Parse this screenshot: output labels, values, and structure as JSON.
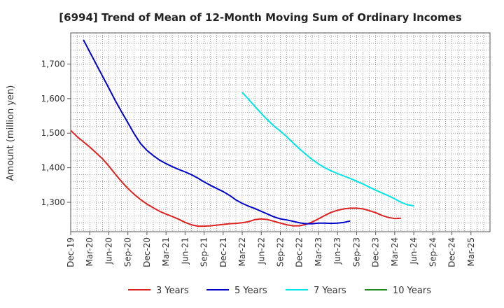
{
  "chart_data": {
    "type": "line",
    "title": "[6994]  Trend of Mean of 12-Month Moving Sum of Ordinary Incomes",
    "xlabel": "",
    "ylabel": "Amount (million yen)",
    "ylim": [
      1215,
      1790
    ],
    "yticks": [
      1300,
      1400,
      1500,
      1600,
      1700
    ],
    "ytick_labels": [
      "1,300",
      "1,400",
      "1,500",
      "1,600",
      "1,700"
    ],
    "x_range": [
      0,
      66
    ],
    "x_tick_labels": [
      "Dec-19",
      "Mar-20",
      "Jun-20",
      "Sep-20",
      "Dec-20",
      "Mar-21",
      "Jun-21",
      "Sep-21",
      "Dec-21",
      "Mar-22",
      "Jun-22",
      "Sep-22",
      "Dec-22",
      "Mar-23",
      "Jun-23",
      "Sep-23",
      "Dec-23",
      "Mar-24",
      "Jun-24",
      "Sep-24",
      "Dec-24",
      "Mar-25"
    ],
    "grid": true,
    "legend_position": "bottom",
    "series": [
      {
        "name": "3 Years",
        "color": "#dd2222",
        "x_start": 0,
        "values": [
          1508,
          1490,
          1475,
          1460,
          1443,
          1426,
          1405,
          1382,
          1360,
          1340,
          1323,
          1308,
          1295,
          1284,
          1274,
          1266,
          1259,
          1251,
          1242,
          1235,
          1231,
          1231,
          1232,
          1234,
          1236,
          1238,
          1239,
          1241,
          1244,
          1250,
          1252,
          1250,
          1245,
          1240,
          1235,
          1232,
          1232,
          1236,
          1243,
          1252,
          1262,
          1271,
          1277,
          1281,
          1283,
          1283,
          1281,
          1276,
          1270,
          1262,
          1256,
          1253,
          1254
        ]
      },
      {
        "name": "5 Years",
        "color": "#0000cc",
        "x_start": 2,
        "values": [
          1770,
          1735,
          1700,
          1665,
          1630,
          1595,
          1562,
          1530,
          1498,
          1470,
          1450,
          1435,
          1422,
          1412,
          1403,
          1395,
          1388,
          1380,
          1370,
          1359,
          1349,
          1340,
          1331,
          1320,
          1307,
          1297,
          1289,
          1282,
          1274,
          1266,
          1258,
          1252,
          1249,
          1245,
          1241,
          1238,
          1238,
          1240,
          1240,
          1239,
          1240,
          1242,
          1246
        ]
      },
      {
        "name": "7 Years",
        "color": "#00e5e5",
        "x_start": 27,
        "values": [
          1618,
          1598,
          1577,
          1557,
          1538,
          1521,
          1506,
          1490,
          1472,
          1455,
          1439,
          1424,
          1411,
          1400,
          1391,
          1383,
          1376,
          1369,
          1361,
          1353,
          1344,
          1335,
          1327,
          1319,
          1310,
          1300,
          1293,
          1290
        ]
      },
      {
        "name": "10 Years",
        "color": "#228822",
        "x_start": 0,
        "values": []
      }
    ]
  }
}
